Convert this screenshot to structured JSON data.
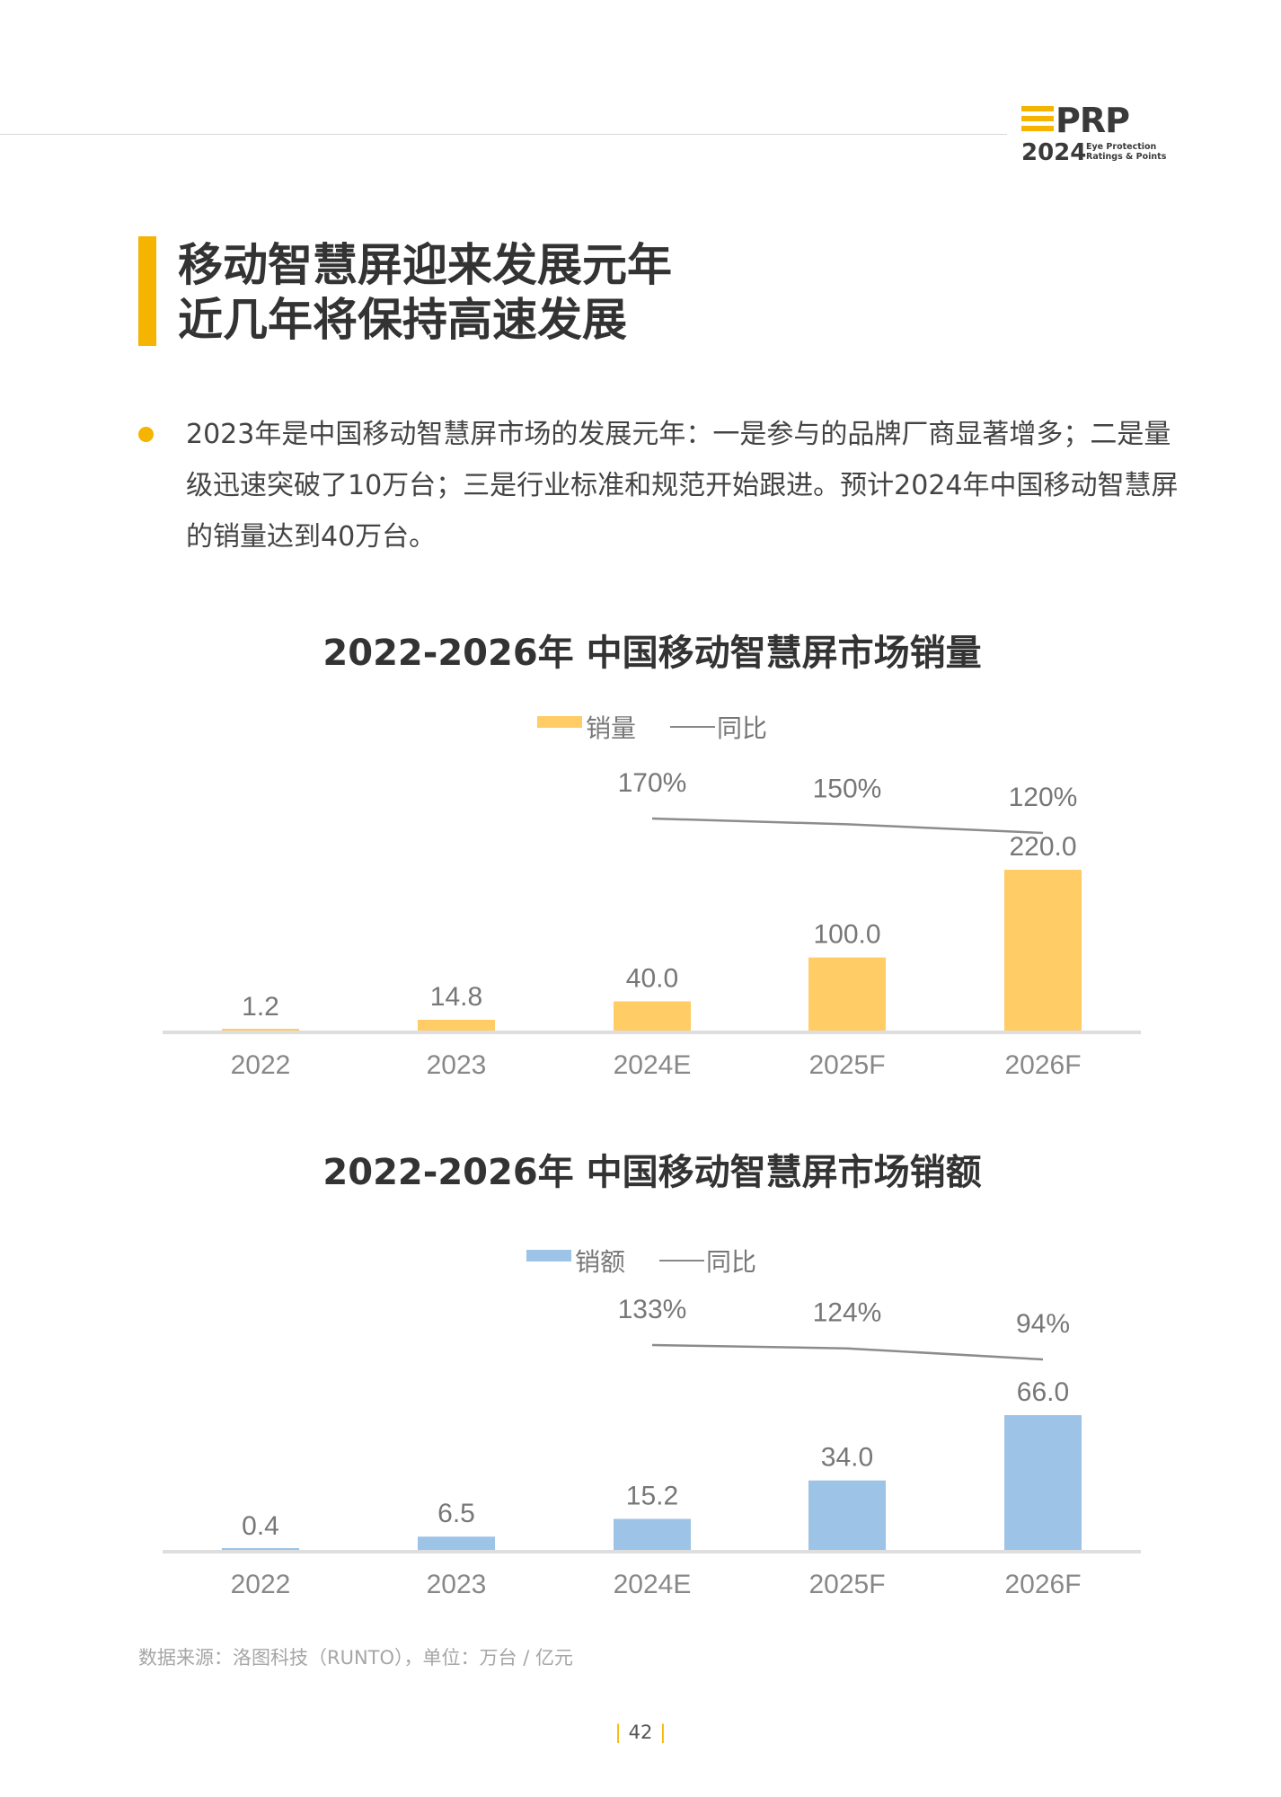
{
  "header": {
    "logo": {
      "brand": "EPRP",
      "year": "2024",
      "tagline_1": "Eye Protection",
      "tagline_2": "Ratings & Points"
    }
  },
  "section": {
    "title_lines": [
      "移动智慧屏迎来发展元年",
      "近几年将保持高速发展"
    ],
    "bullet_text": "2023年是中国移动智慧屏市场的发展元年：一是参与的品牌厂商显著增多；二是量级迅速突破了10万台；三是行业标准和规范开始跟进。预计2024年中国移动智慧屏的销量达到40万台。"
  },
  "colors": {
    "accent": "#F5B400",
    "volume_bar": "#FFCC66",
    "revenue_bar": "#9DC3E6",
    "yoy_line": "#8c8c8c"
  },
  "chart_data": [
    {
      "type": "bar",
      "title": "2022-2026年 中国移动智慧屏市场销量",
      "categories": [
        "2022",
        "2023",
        "2024E",
        "2025F",
        "2026F"
      ],
      "series": [
        {
          "name": "销量",
          "type": "bar",
          "values": [
            1.2,
            14.8,
            40.0,
            100.0,
            220.0
          ],
          "labels": [
            "1.2",
            "14.8",
            "40.0",
            "100.0",
            "220.0"
          ]
        },
        {
          "name": "同比",
          "type": "line",
          "values": [
            null,
            null,
            170,
            150,
            120
          ],
          "labels": [
            "",
            "",
            "170%",
            "150%",
            "120%"
          ]
        }
      ],
      "legend": "top-center",
      "grid": false
    },
    {
      "type": "bar",
      "title": "2022-2026年 中国移动智慧屏市场销额",
      "categories": [
        "2022",
        "2023",
        "2024E",
        "2025F",
        "2026F"
      ],
      "series": [
        {
          "name": "销额",
          "type": "bar",
          "values": [
            0.4,
            6.5,
            15.2,
            34.0,
            66.0
          ],
          "labels": [
            "0.4",
            "6.5",
            "15.2",
            "34.0",
            "66.0"
          ]
        },
        {
          "name": "同比",
          "type": "line",
          "values": [
            null,
            null,
            133,
            124,
            94
          ],
          "labels": [
            "",
            "",
            "133%",
            "124%",
            "94%"
          ]
        }
      ],
      "legend": "top-center",
      "grid": false
    }
  ],
  "footer": {
    "source": "数据来源：洛图科技（RUNTO），单位：万台 / 亿元",
    "page_number": "42"
  }
}
